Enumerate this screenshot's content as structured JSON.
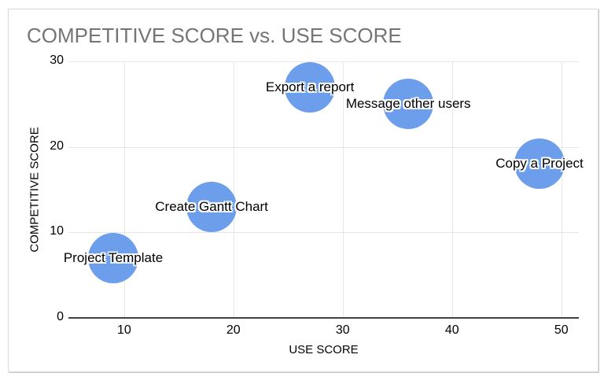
{
  "chart_data": {
    "type": "scatter",
    "subtype": "bubble",
    "title": "COMPETITIVE SCORE vs. USE SCORE",
    "xlabel": "USE SCORE",
    "ylabel": "COMPETITIVE SCORE",
    "points": [
      {
        "label": "Project Template",
        "x": 9,
        "y": 7
      },
      {
        "label": "Create Gantt Chart",
        "x": 18,
        "y": 13
      },
      {
        "label": "Export a report",
        "x": 27,
        "y": 27
      },
      {
        "label": "Message other users",
        "x": 36,
        "y": 25
      },
      {
        "label": "Copy a Project",
        "x": 48,
        "y": 18
      }
    ],
    "xlim": [
      4.9,
      51.6
    ],
    "ylim": [
      0,
      30
    ],
    "x_ticks": [
      10,
      20,
      30,
      40,
      50
    ],
    "y_ticks": [
      0,
      10,
      20,
      30
    ],
    "grid": true,
    "legend": "none",
    "bubble_color": "#6d9eeb",
    "bubble_radius_px": 32,
    "title_color": "#757575",
    "gridline_color": "#e6e6e6",
    "axis_line_color": "#424242"
  }
}
